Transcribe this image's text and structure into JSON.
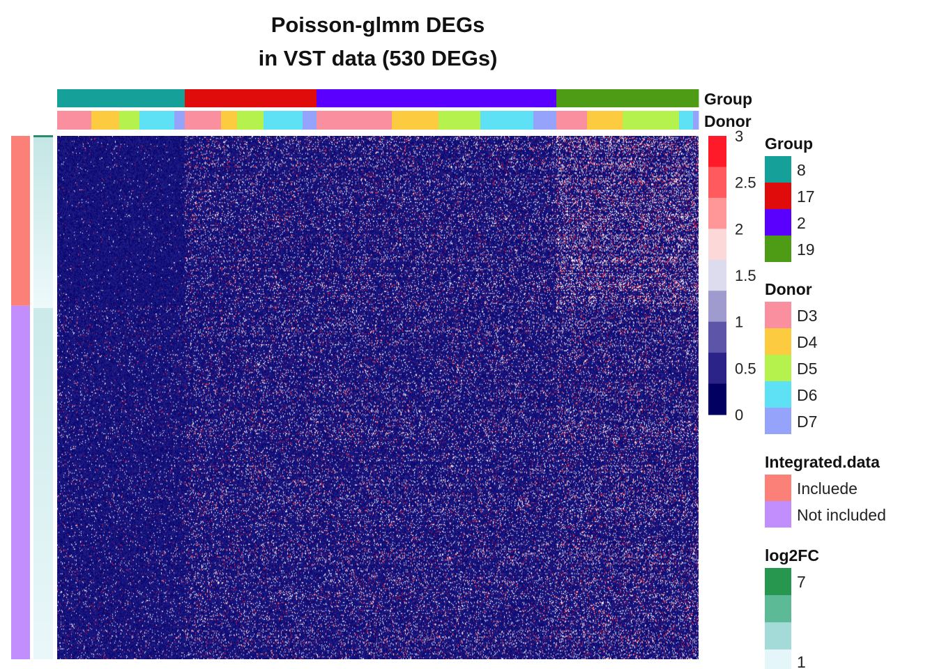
{
  "chart_data": {
    "type": "heatmap",
    "title": [
      "Poisson-glmm DEGs",
      "in VST data (530 DEGs)"
    ],
    "n_genes": 530,
    "value_scale": {
      "ticks": [
        "3",
        "2.5",
        "2",
        "1.5",
        "1",
        "0.5",
        "0"
      ],
      "colors": [
        "#ff1a2a",
        "#ff5a5e",
        "#ff9799",
        "#fdd8d8",
        "#dcdcee",
        "#9f9bcf",
        "#5c55a8",
        "#2b2388",
        "#020060"
      ],
      "range": [
        0,
        3
      ]
    },
    "column_annotations": {
      "group": {
        "label": "Group",
        "legend_title": "Group",
        "levels": [
          {
            "name": "8",
            "color": "#16a09a"
          },
          {
            "name": "17",
            "color": "#e00b0b"
          },
          {
            "name": "2",
            "color": "#5a00ff"
          },
          {
            "name": "19",
            "color": "#4e9b16"
          }
        ],
        "segments": [
          {
            "level": "8",
            "columns": 183
          },
          {
            "level": "17",
            "columns": 189
          },
          {
            "level": "2",
            "columns": 344
          },
          {
            "level": "19",
            "columns": 204
          }
        ]
      },
      "donor": {
        "label": "Donor",
        "legend_title": "Donor",
        "levels": [
          {
            "name": "D3",
            "color": "#fa8f9f"
          },
          {
            "name": "D4",
            "color": "#fccb3f"
          },
          {
            "name": "D5",
            "color": "#b6f24e"
          },
          {
            "name": "D6",
            "color": "#5ee1f5"
          },
          {
            "name": "D7",
            "color": "#95a3fb"
          }
        ],
        "segments": [
          {
            "level": "D3",
            "columns": 49
          },
          {
            "level": "D4",
            "columns": 40
          },
          {
            "level": "D5",
            "columns": 29
          },
          {
            "level": "D6",
            "columns": 50
          },
          {
            "level": "D7",
            "columns": 15
          },
          {
            "level": "D3",
            "columns": 52
          },
          {
            "level": "D4",
            "columns": 23
          },
          {
            "level": "D5",
            "columns": 38
          },
          {
            "level": "D6",
            "columns": 56
          },
          {
            "level": "D7",
            "columns": 20
          },
          {
            "level": "D3",
            "columns": 108
          },
          {
            "level": "D4",
            "columns": 67
          },
          {
            "level": "D5",
            "columns": 60
          },
          {
            "level": "D6",
            "columns": 76
          },
          {
            "level": "D7",
            "columns": 33
          },
          {
            "level": "D3",
            "columns": 44
          },
          {
            "level": "D4",
            "columns": 51
          },
          {
            "level": "D5",
            "columns": 81
          },
          {
            "level": "D6",
            "columns": 20
          },
          {
            "level": "D7",
            "columns": 8
          }
        ]
      }
    },
    "row_annotations": {
      "integrated": {
        "legend_title": "Integrated.data",
        "levels": [
          {
            "name": "Incluede",
            "color": "#fb8077"
          },
          {
            "name": "Not included",
            "color": "#c28dfc"
          }
        ],
        "genes_per_level": [
          172,
          358
        ]
      },
      "log2fc": {
        "legend_title": "log2FC",
        "ticks": [
          "7",
          "1"
        ],
        "colors": [
          "#27974f",
          "#5cba96",
          "#a4dbd9",
          "#e5f6fa"
        ],
        "range": [
          1,
          7
        ]
      }
    }
  }
}
